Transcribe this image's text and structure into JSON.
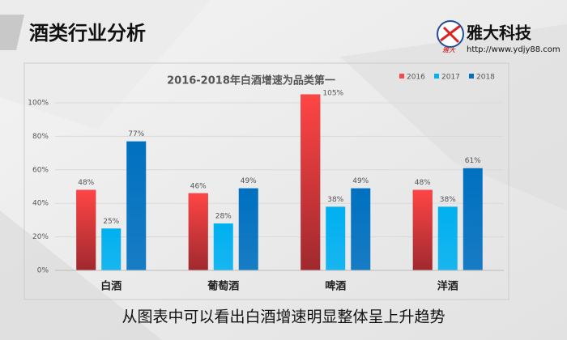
{
  "header": {
    "title": "酒类行业分析",
    "logo_name": "雅大科技",
    "logo_mark": "雅大",
    "url": "http://www.ydjy88.com"
  },
  "chart_data": {
    "type": "bar",
    "title": "2016-2018年白酒增速为品类第一",
    "categories": [
      "白酒",
      "葡萄酒",
      "啤酒",
      "洋酒"
    ],
    "series": [
      {
        "name": "2016",
        "color": "#ff4545",
        "values": [
          48,
          46,
          105,
          48
        ],
        "value_labels": [
          "48%",
          "46%",
          "105%",
          "48%"
        ]
      },
      {
        "name": "2017",
        "color": "#00b0f0",
        "values": [
          25,
          28,
          38,
          38
        ],
        "value_labels": [
          "25%",
          "28%",
          "38%",
          "38%"
        ]
      },
      {
        "name": "2018",
        "color": "#0070c0",
        "values": [
          77,
          49,
          49,
          61
        ],
        "value_labels": [
          "77%",
          "49%",
          "49%",
          "61%"
        ]
      }
    ],
    "ylim": [
      0,
      100
    ],
    "yticks": [
      {
        "value": 0,
        "label": "0%"
      },
      {
        "value": 20,
        "label": "20%"
      },
      {
        "value": 40,
        "label": "40%"
      },
      {
        "value": 60,
        "label": "60%"
      },
      {
        "value": 80,
        "label": "80%"
      },
      {
        "value": 100,
        "label": "100%"
      }
    ],
    "grid": true,
    "legend": "top-right"
  },
  "footer": {
    "text": "从图表中可以看出白酒增速明显整体呈上升趋势"
  }
}
